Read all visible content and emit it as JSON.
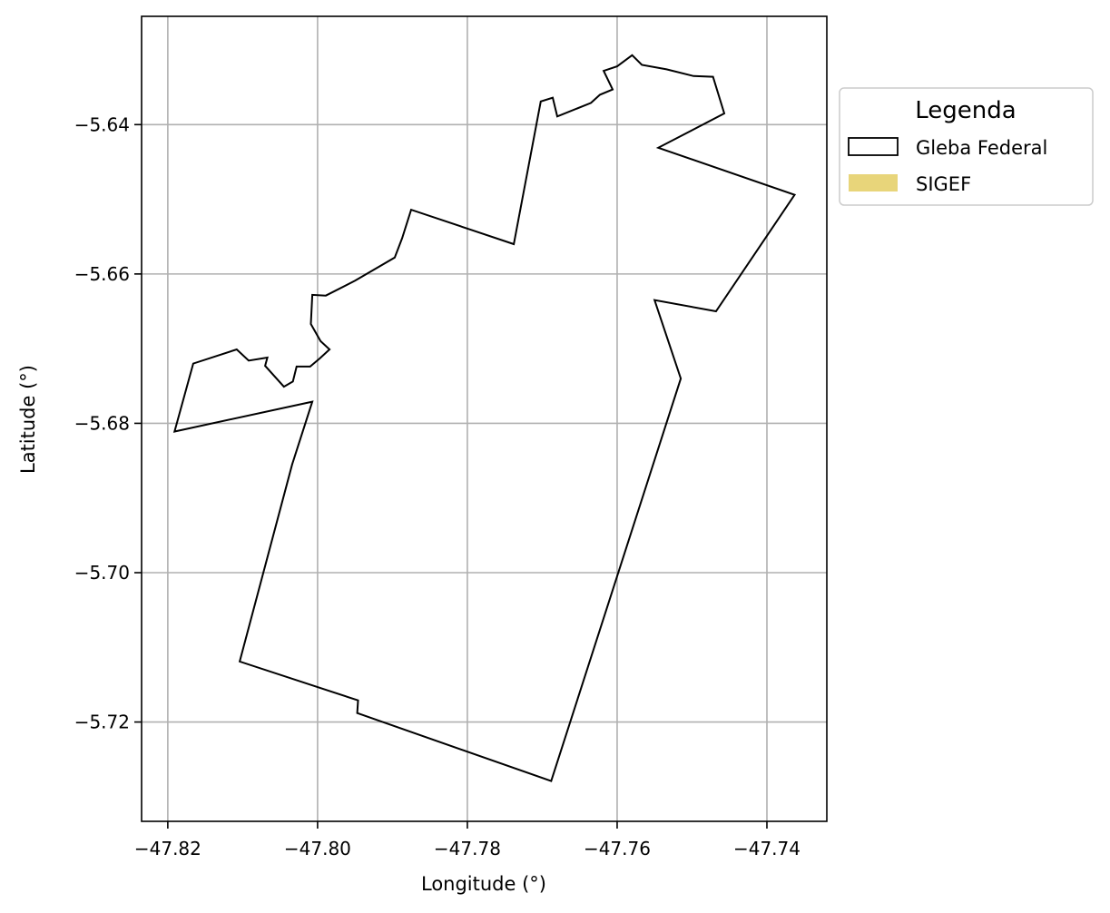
{
  "chart_data": {
    "type": "map",
    "xlabel": "Longitude (°)",
    "ylabel": "Latitude (°)",
    "xlim": [
      -47.8235,
      -47.732
    ],
    "ylim": [
      -5.7333,
      -5.6255
    ],
    "grid": true,
    "x_ticks": [
      {
        "value": -47.82,
        "label": "−47.82"
      },
      {
        "value": -47.8,
        "label": "−47.80"
      },
      {
        "value": -47.78,
        "label": "−47.78"
      },
      {
        "value": -47.76,
        "label": "−47.76"
      },
      {
        "value": -47.74,
        "label": "−47.74"
      }
    ],
    "y_ticks": [
      {
        "value": -5.64,
        "label": "−5.64"
      },
      {
        "value": -5.66,
        "label": "−5.66"
      },
      {
        "value": -5.68,
        "label": "−5.68"
      },
      {
        "value": -5.7,
        "label": "−5.70"
      },
      {
        "value": -5.72,
        "label": "−5.72"
      }
    ],
    "legend": {
      "title": "Legenda",
      "placement": "outside-upper-right",
      "entries": [
        {
          "label": "Gleba Federal",
          "style": "outline",
          "color": "#000000"
        },
        {
          "label": "SIGEF",
          "style": "fill",
          "color": "#e8d57a"
        }
      ]
    },
    "layers": [
      {
        "name": "Gleba Federal",
        "type": "polygon",
        "stroke": "#000000",
        "fill": "none",
        "coordinates": [
          [
            -47.8191,
            -5.6811
          ],
          [
            -47.8166,
            -5.672
          ],
          [
            -47.8108,
            -5.6701
          ],
          [
            -47.8092,
            -5.6716
          ],
          [
            -47.8067,
            -5.6712
          ],
          [
            -47.807,
            -5.6723
          ],
          [
            -47.8045,
            -5.6751
          ],
          [
            -47.8033,
            -5.6744
          ],
          [
            -47.8028,
            -5.6724
          ],
          [
            -47.801,
            -5.6724
          ],
          [
            -47.7997,
            -5.6713
          ],
          [
            -47.7984,
            -5.6701
          ],
          [
            -47.7996,
            -5.669
          ],
          [
            -47.8009,
            -5.6667
          ],
          [
            -47.8007,
            -5.6628
          ],
          [
            -47.7989,
            -5.6629
          ],
          [
            -47.795,
            -5.6609
          ],
          [
            -47.7897,
            -5.6578
          ],
          [
            -47.7887,
            -5.6552
          ],
          [
            -47.7875,
            -5.6514
          ],
          [
            -47.7738,
            -5.656
          ],
          [
            -47.7702,
            -5.6369
          ],
          [
            -47.7686,
            -5.6364
          ],
          [
            -47.768,
            -5.6389
          ],
          [
            -47.7635,
            -5.6371
          ],
          [
            -47.7623,
            -5.636
          ],
          [
            -47.7606,
            -5.6353
          ],
          [
            -47.7618,
            -5.6328
          ],
          [
            -47.76,
            -5.6322
          ],
          [
            -47.758,
            -5.6307
          ],
          [
            -47.7567,
            -5.632
          ],
          [
            -47.7534,
            -5.6326
          ],
          [
            -47.7498,
            -5.6335
          ],
          [
            -47.7472,
            -5.6336
          ],
          [
            -47.7457,
            -5.6385
          ],
          [
            -47.7545,
            -5.6431
          ],
          [
            -47.7363,
            -5.6494
          ],
          [
            -47.7468,
            -5.665
          ],
          [
            -47.755,
            -5.6635
          ],
          [
            -47.7515,
            -5.674
          ],
          [
            -47.7688,
            -5.7279
          ],
          [
            -47.7947,
            -5.7188
          ],
          [
            -47.7946,
            -5.7171
          ],
          [
            -47.8104,
            -5.7119
          ],
          [
            -47.8034,
            -5.6855
          ],
          [
            -47.8007,
            -5.6771
          ],
          [
            -47.8191,
            -5.6811
          ]
        ]
      },
      {
        "name": "SIGEF",
        "type": "polygon",
        "fill": "#e8d57a",
        "coordinates": []
      }
    ]
  }
}
